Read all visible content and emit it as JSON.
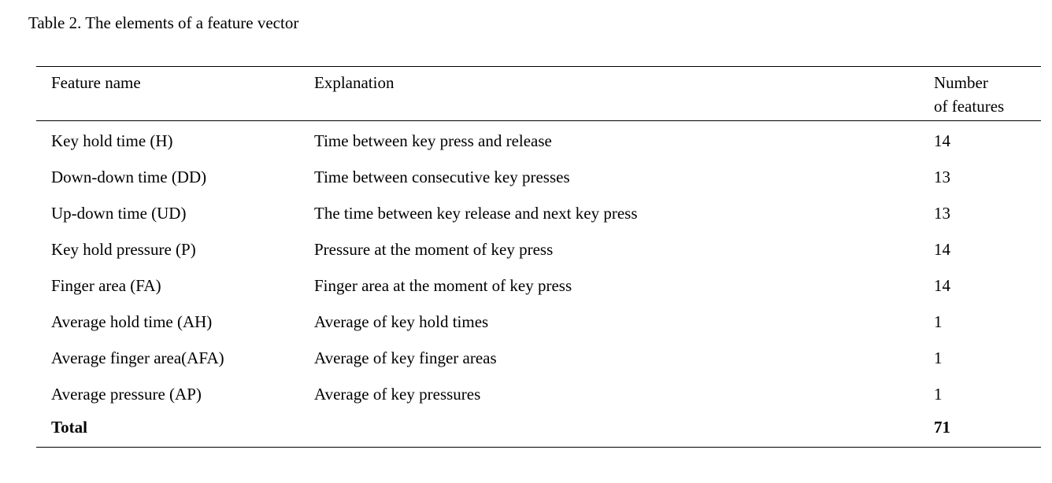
{
  "caption": "Table 2. The elements of a feature vector",
  "table": {
    "headers": {
      "feature_name": "Feature name",
      "explanation": "Explanation",
      "number_line1": "Number",
      "number_line2": "of features"
    },
    "rows": [
      {
        "feature": "Key hold time (H)",
        "explanation": "Time between  key press and release",
        "count": "14"
      },
      {
        "feature": "Down-down time (DD)",
        "explanation": "Time between consecutive key presses",
        "count": "13"
      },
      {
        "feature": "Up-down time (UD)",
        "explanation": "The time between key release and next key press",
        "count": "13"
      },
      {
        "feature": "Key hold pressure (P)",
        "explanation": "Pressure at the moment of key press",
        "count": "14"
      },
      {
        "feature": "Finger area  (FA)",
        "explanation": "Finger area at the moment of  key press",
        "count": "14"
      },
      {
        "feature": "Average hold time (AH)",
        "explanation": "Average of  key hold times",
        "count": "1"
      },
      {
        "feature": "Average finger area(AFA)",
        "explanation": "Average of key finger areas",
        "count": "1"
      },
      {
        "feature": "Average pressure (AP)",
        "explanation": "Average of key pressures",
        "count": "1"
      }
    ],
    "total": {
      "label": "Total",
      "count": "71"
    }
  }
}
